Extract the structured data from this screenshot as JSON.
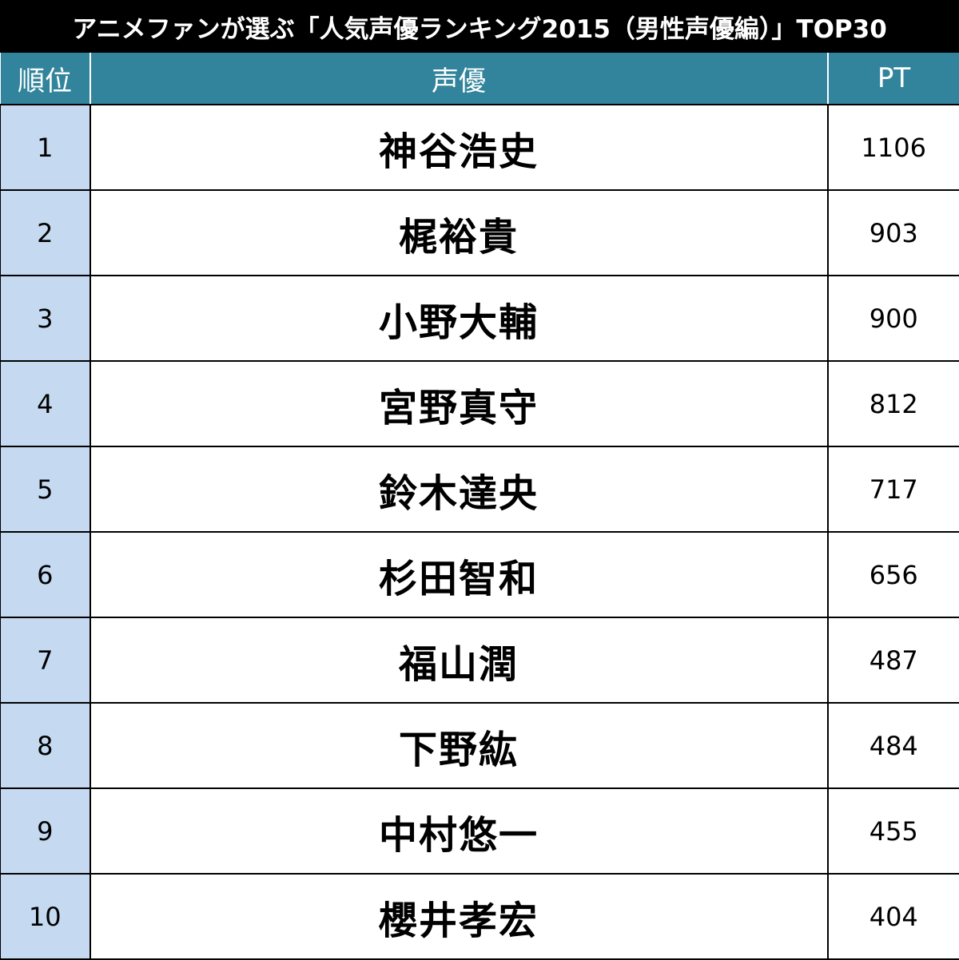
{
  "title": "アニメファンが選ぶ「人気声優ランキング2015（男性声優編）」TOP30",
  "colors": {
    "title_background": "#000000",
    "header_background": "#31849b",
    "rank_cell_background": "#c5d9f1"
  },
  "table": {
    "headers": {
      "rank": "順位",
      "name": "声優",
      "pt": "PT"
    },
    "rows": [
      {
        "rank": "1",
        "name": "神谷浩史",
        "pt": "1106"
      },
      {
        "rank": "2",
        "name": "梶裕貴",
        "pt": "903"
      },
      {
        "rank": "3",
        "name": "小野大輔",
        "pt": "900"
      },
      {
        "rank": "4",
        "name": "宮野真守",
        "pt": "812"
      },
      {
        "rank": "5",
        "name": "鈴木達央",
        "pt": "717"
      },
      {
        "rank": "6",
        "name": "杉田智和",
        "pt": "656"
      },
      {
        "rank": "7",
        "name": "福山潤",
        "pt": "487"
      },
      {
        "rank": "8",
        "name": "下野紘",
        "pt": "484"
      },
      {
        "rank": "9",
        "name": "中村悠一",
        "pt": "455"
      },
      {
        "rank": "10",
        "name": "櫻井孝宏",
        "pt": "404"
      }
    ]
  }
}
